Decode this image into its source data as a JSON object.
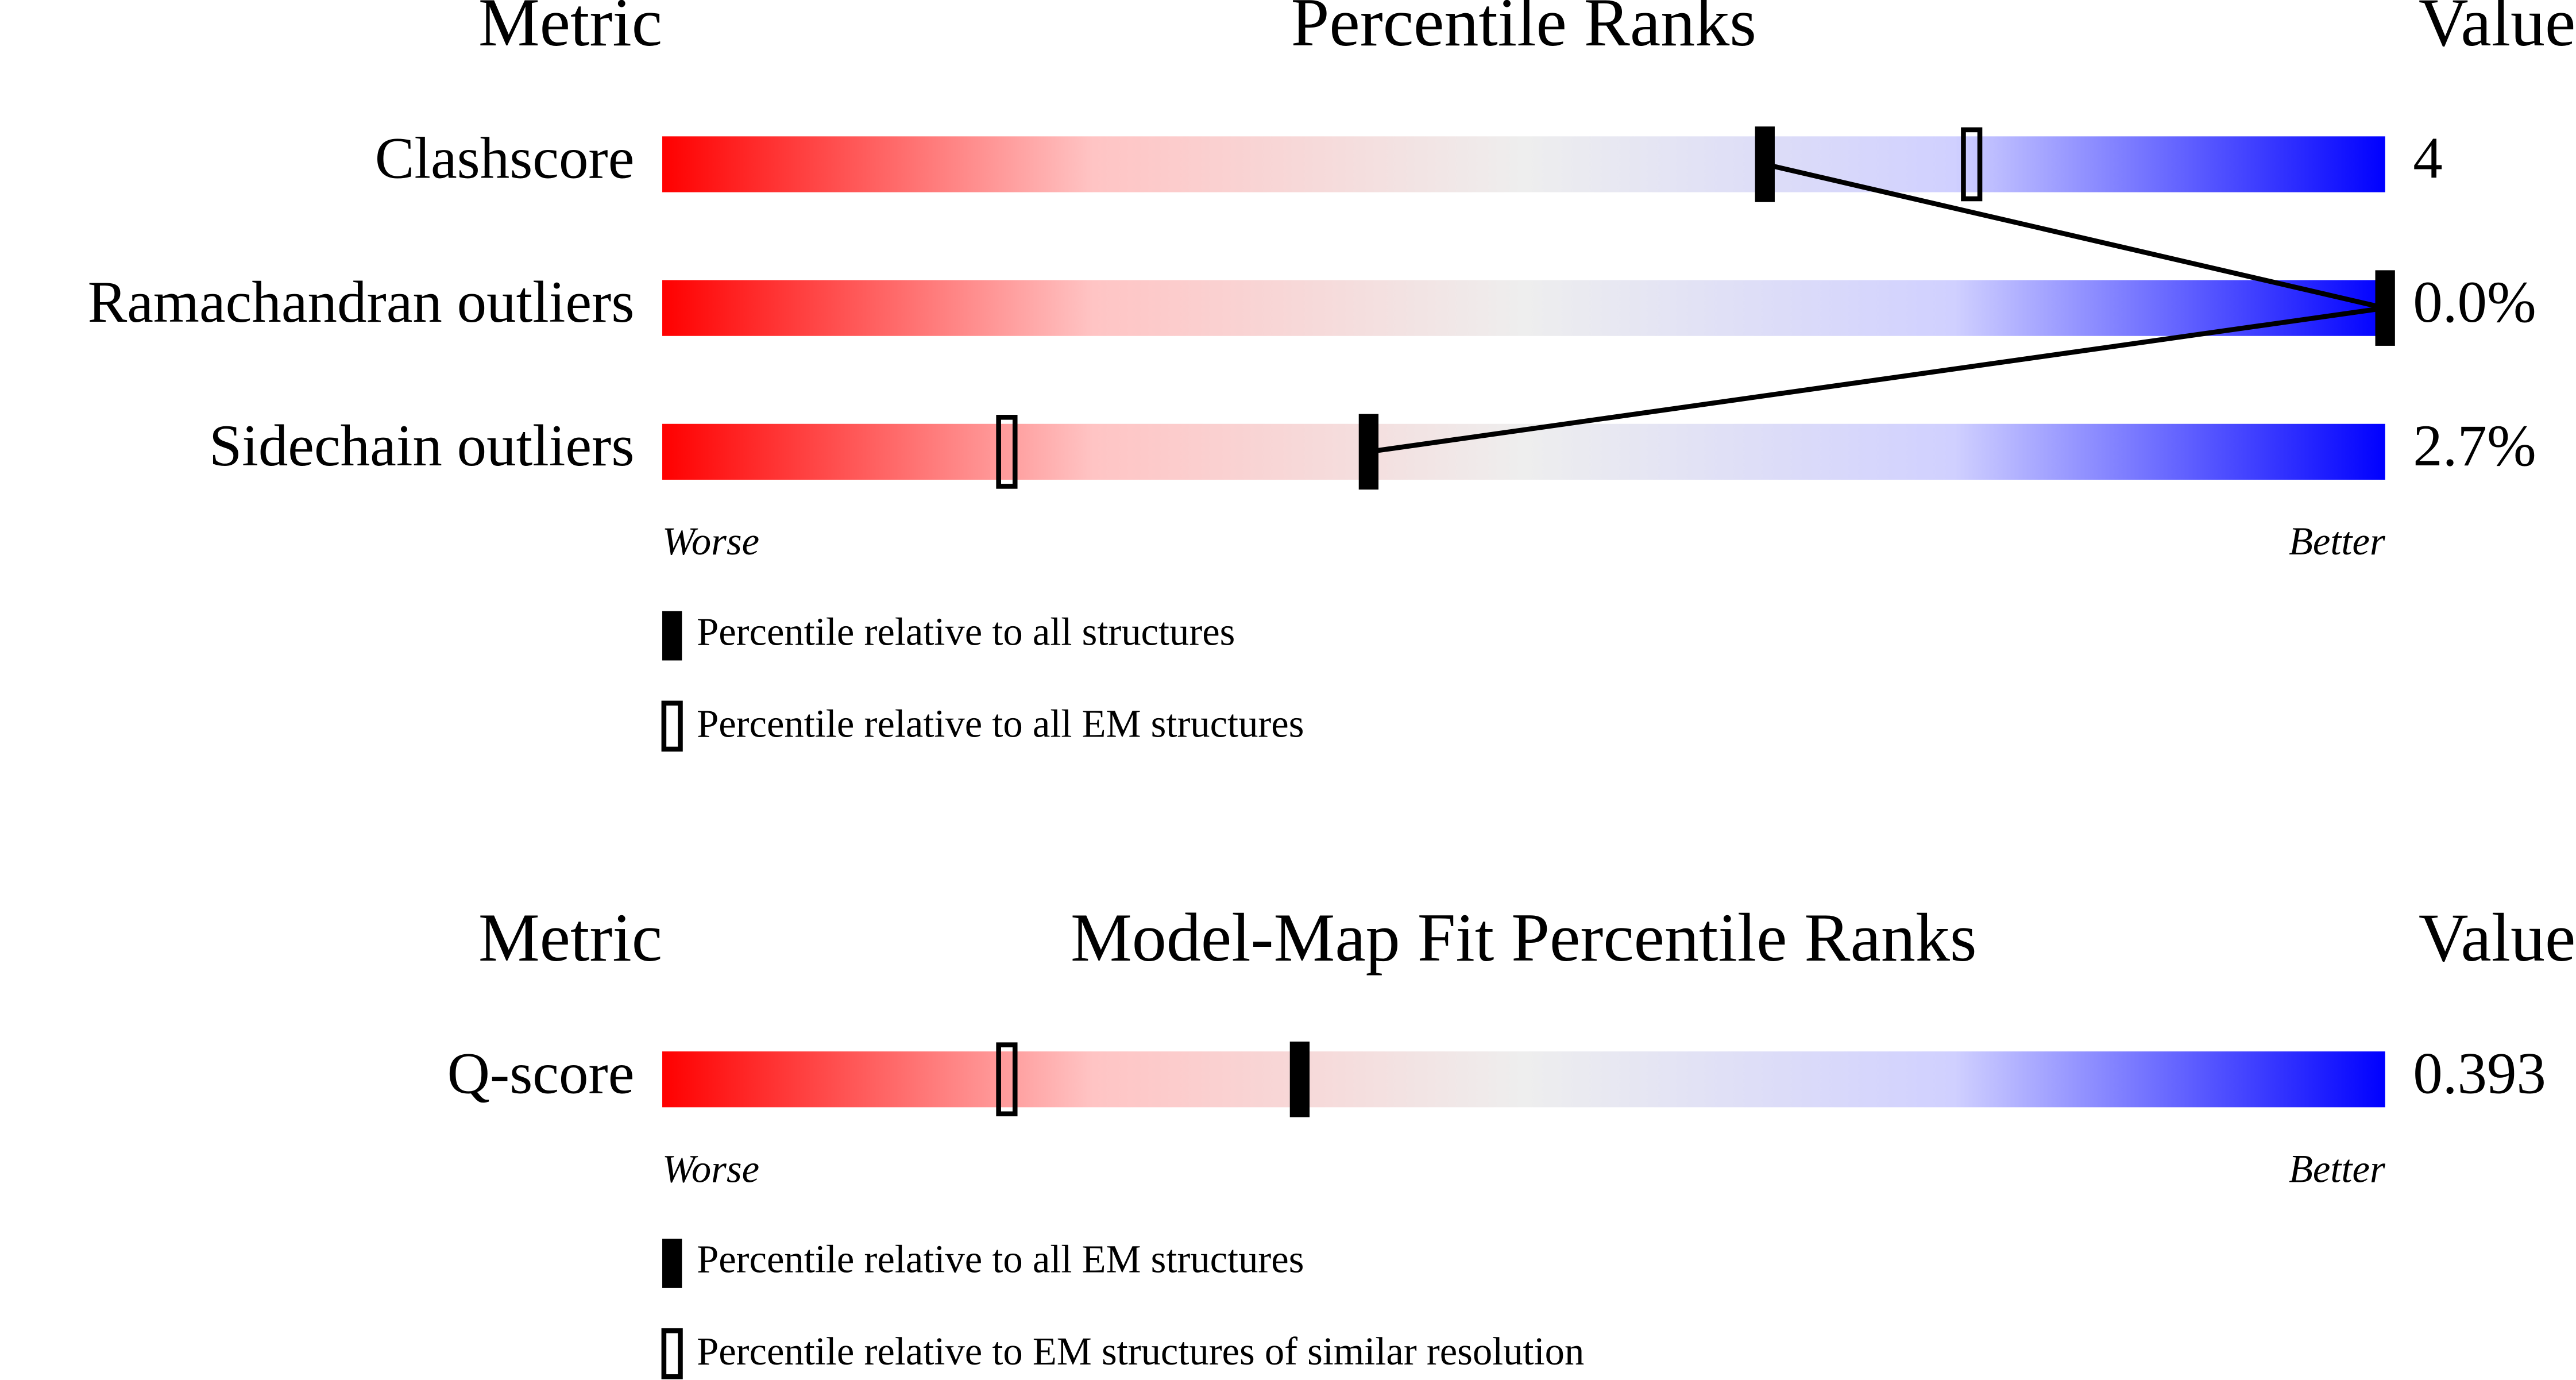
{
  "panels": [
    {
      "headers": {
        "metric": "Metric",
        "title": "Percentile Ranks",
        "value": "Value"
      },
      "xlim": [
        0,
        100
      ],
      "rows": [
        {
          "metric": "Clashscore",
          "value": "4",
          "percentile_all": 64,
          "percentile_em": 76
        },
        {
          "metric": "Ramachandran outliers",
          "value": "0.0%",
          "percentile_all": 100
        },
        {
          "metric": "Sidechain outliers",
          "value": "2.7%",
          "percentile_all": 41,
          "percentile_em": 20
        }
      ],
      "worse": "Worse",
      "better": "Better",
      "legend": {
        "filled": "Percentile relative to all structures",
        "open": "Percentile relative to all EM structures"
      },
      "connect": true
    },
    {
      "headers": {
        "metric": "Metric",
        "title": "Model-Map Fit Percentile Ranks",
        "value": "Value"
      },
      "xlim": [
        0,
        100
      ],
      "rows": [
        {
          "metric": "Q-score",
          "value": "0.393",
          "percentile_all": 37,
          "percentile_em": 20
        }
      ],
      "worse": "Worse",
      "better": "Better",
      "legend": {
        "filled": "Percentile relative to all EM structures",
        "open": "Percentile relative to EM structures of similar resolution"
      },
      "connect": false
    }
  ]
}
